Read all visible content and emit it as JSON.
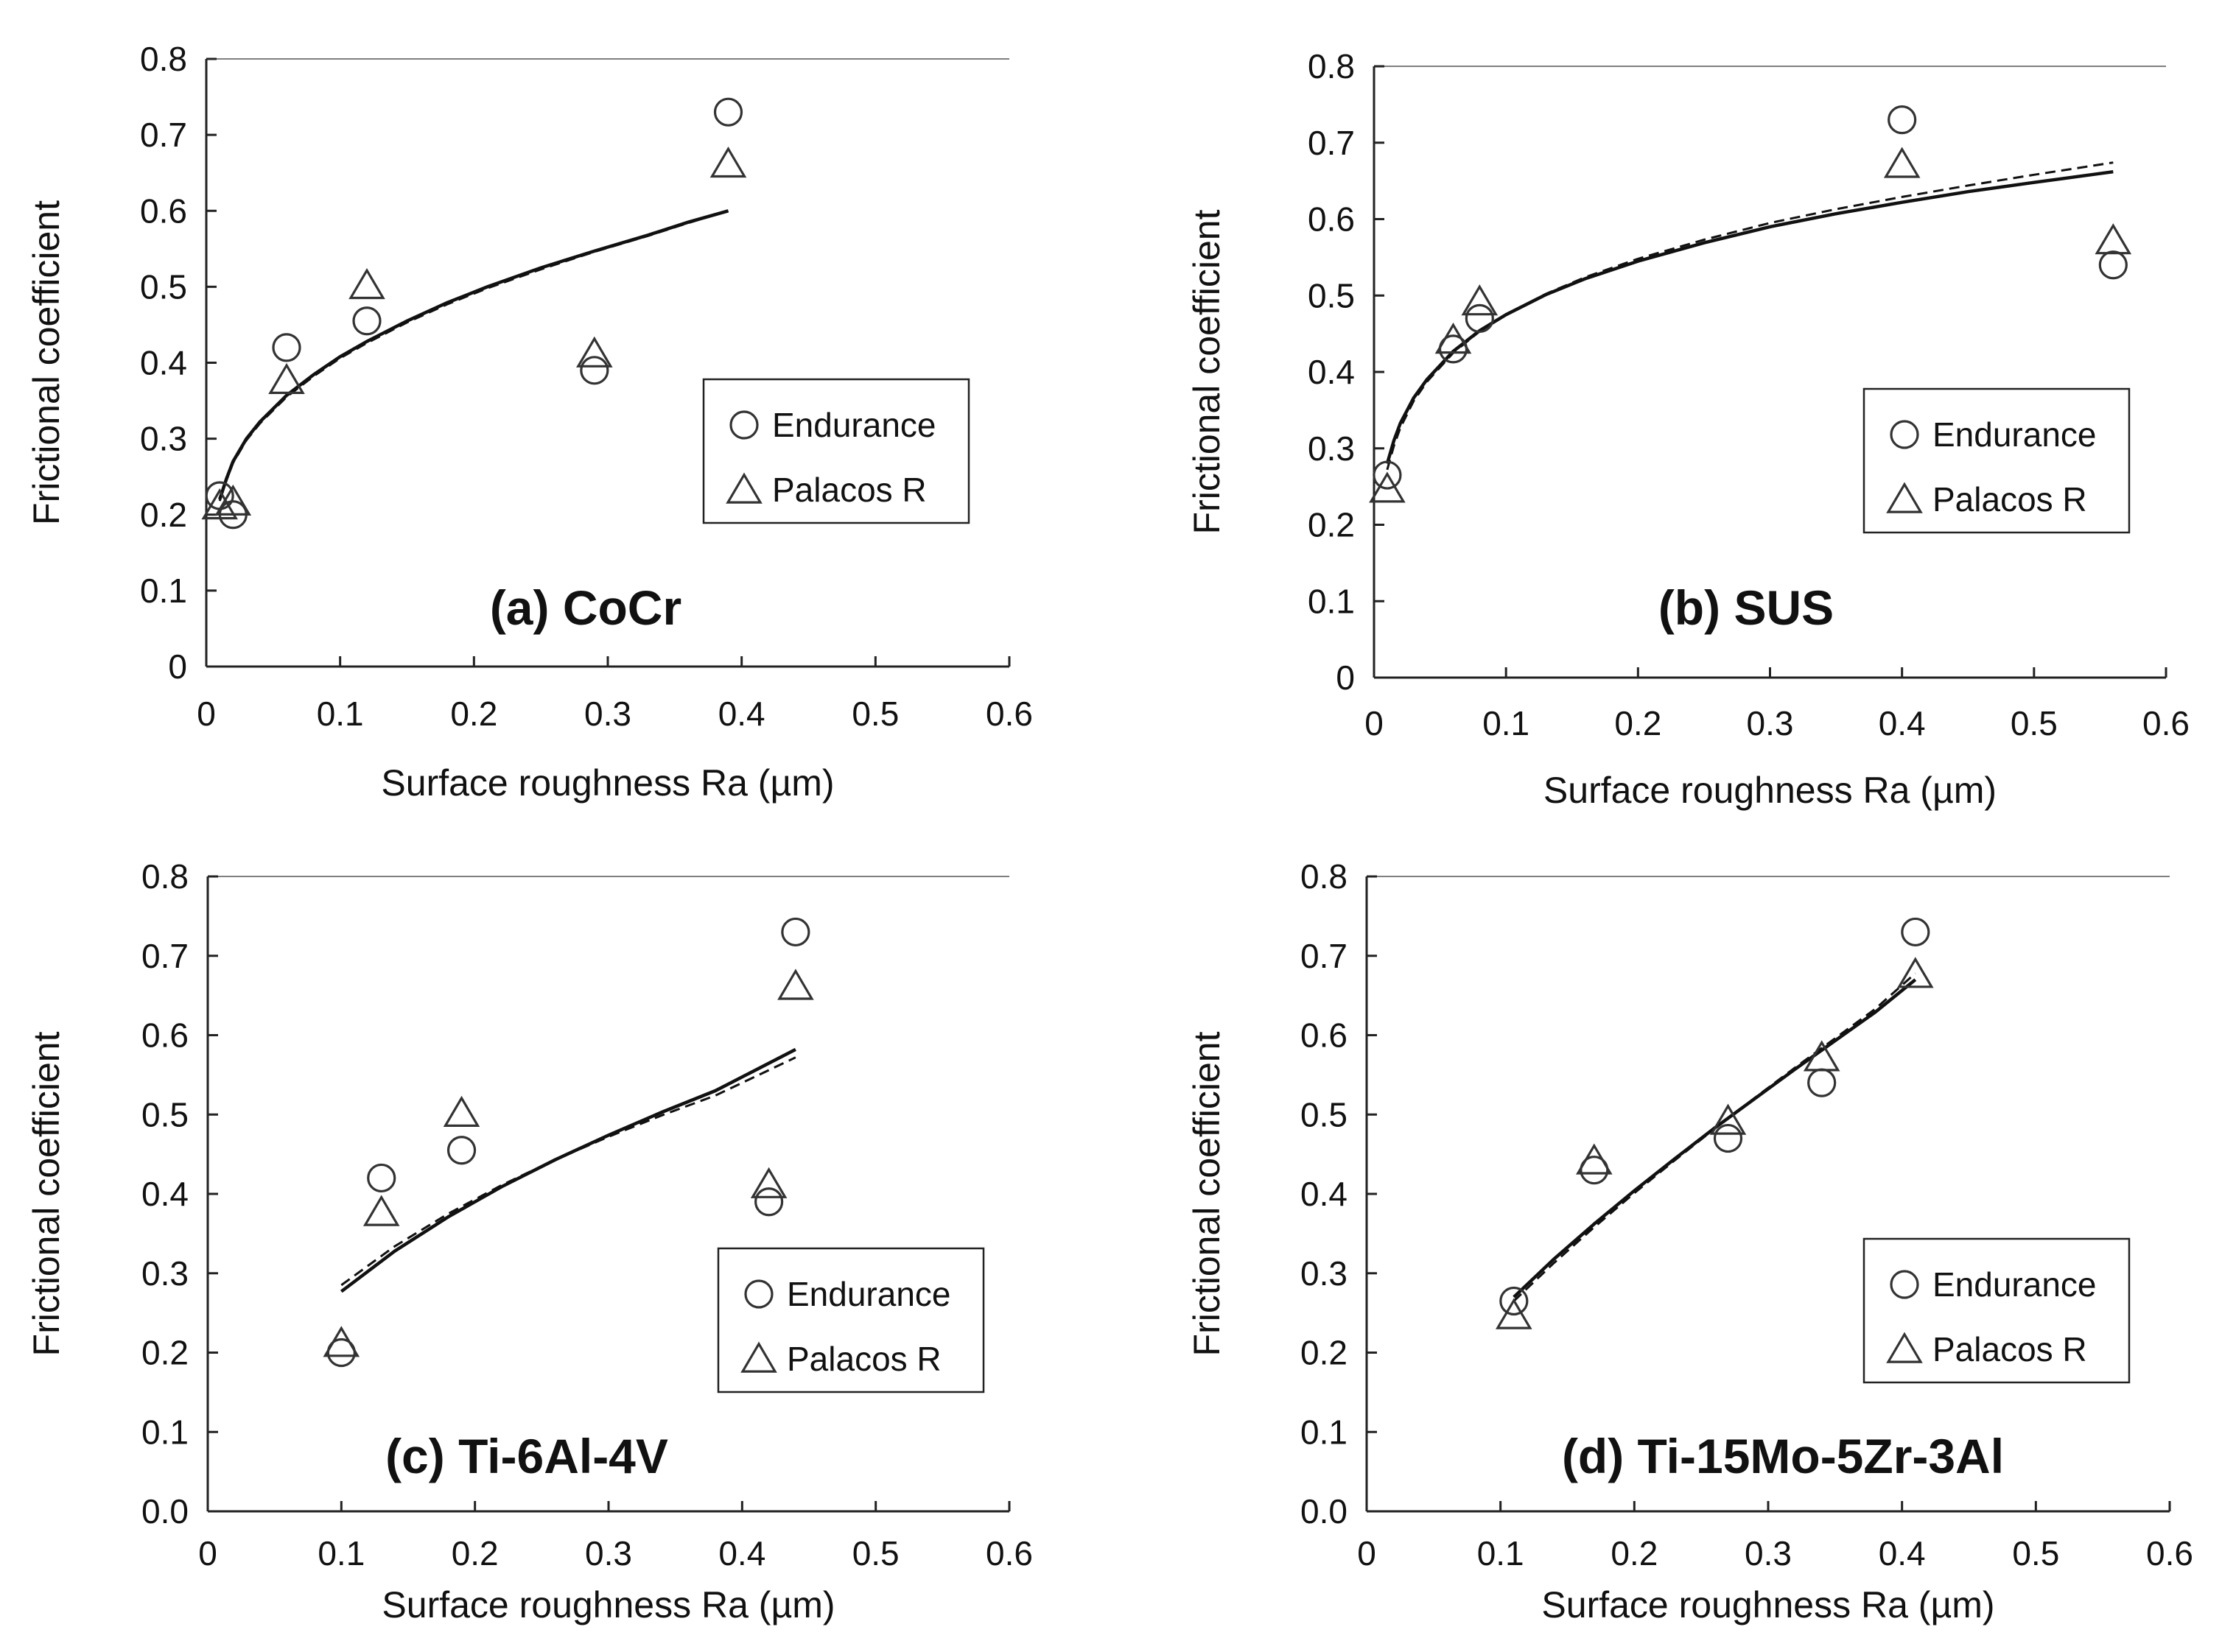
{
  "chart_data": [
    {
      "type": "scatter",
      "title": "(a) CoCr",
      "xlabel": "Surface roughness Ra (µm)",
      "ylabel": "Frictional coefficient",
      "xlim": [
        0,
        0.6
      ],
      "ylim": [
        0,
        0.8
      ],
      "x_ticks": [
        "0",
        "0.1",
        "0.2",
        "0.3",
        "0.4",
        "0.5",
        "0.6"
      ],
      "y_ticks": [
        "0",
        "0.1",
        "0.2",
        "0.3",
        "0.4",
        "0.5",
        "0.6",
        "0.7",
        "0.8"
      ],
      "legend_position": "right-middle",
      "series": [
        {
          "name": "Endurance",
          "marker": "circle",
          "x": [
            0.01,
            0.02,
            0.06,
            0.12,
            0.29,
            0.39
          ],
          "y": [
            0.225,
            0.2,
            0.42,
            0.455,
            0.39,
            0.73
          ]
        },
        {
          "name": "Palacos R",
          "marker": "triangle",
          "x": [
            0.01,
            0.02,
            0.06,
            0.12,
            0.29,
            0.39
          ],
          "y": [
            0.21,
            0.215,
            0.375,
            0.5,
            0.41,
            0.66
          ]
        }
      ],
      "fits": [
        {
          "style": "solid",
          "x": [
            0.01,
            0.015,
            0.02,
            0.03,
            0.04,
            0.06,
            0.08,
            0.1,
            0.12,
            0.15,
            0.18,
            0.21,
            0.25,
            0.29,
            0.33,
            0.36,
            0.39
          ],
          "y": [
            0.22,
            0.247,
            0.27,
            0.3,
            0.322,
            0.357,
            0.384,
            0.408,
            0.428,
            0.455,
            0.479,
            0.5,
            0.525,
            0.547,
            0.568,
            0.585,
            0.6
          ]
        },
        {
          "style": "dashed",
          "x": [
            0.01,
            0.015,
            0.02,
            0.03,
            0.04,
            0.06,
            0.08,
            0.1,
            0.12,
            0.15,
            0.18,
            0.21,
            0.25,
            0.29,
            0.33,
            0.36,
            0.39
          ],
          "y": [
            0.218,
            0.245,
            0.268,
            0.298,
            0.32,
            0.355,
            0.382,
            0.406,
            0.426,
            0.453,
            0.477,
            0.498,
            0.523,
            0.546,
            0.567,
            0.584,
            0.6
          ]
        }
      ]
    },
    {
      "type": "scatter",
      "title": "(b) SUS",
      "xlabel": "Surface roughness Ra (µm)",
      "ylabel": "Frictional coefficient",
      "xlim": [
        0,
        0.6
      ],
      "ylim": [
        0,
        0.8
      ],
      "x_ticks": [
        "0",
        "0.1",
        "0.2",
        "0.3",
        "0.4",
        "0.5",
        "0.6"
      ],
      "y_ticks": [
        "0",
        "0.1",
        "0.2",
        "0.3",
        "0.4",
        "0.5",
        "0.6",
        "0.7",
        "0.8"
      ],
      "legend_position": "right-middle",
      "series": [
        {
          "name": "Endurance",
          "marker": "circle",
          "x": [
            0.01,
            0.06,
            0.08,
            0.4,
            0.56
          ],
          "y": [
            0.265,
            0.43,
            0.47,
            0.73,
            0.54
          ]
        },
        {
          "name": "Palacos R",
          "marker": "triangle",
          "x": [
            0.01,
            0.06,
            0.08,
            0.4,
            0.56
          ],
          "y": [
            0.245,
            0.44,
            0.49,
            0.67,
            0.57
          ]
        }
      ],
      "fits": [
        {
          "style": "solid",
          "x": [
            0.01,
            0.015,
            0.02,
            0.03,
            0.04,
            0.06,
            0.08,
            0.1,
            0.13,
            0.16,
            0.2,
            0.25,
            0.3,
            0.35,
            0.4,
            0.45,
            0.5,
            0.56
          ],
          "y": [
            0.28,
            0.31,
            0.333,
            0.366,
            0.39,
            0.427,
            0.454,
            0.475,
            0.501,
            0.522,
            0.545,
            0.569,
            0.59,
            0.607,
            0.622,
            0.636,
            0.648,
            0.662
          ]
        },
        {
          "style": "dashed",
          "x": [
            0.01,
            0.015,
            0.02,
            0.03,
            0.04,
            0.06,
            0.08,
            0.1,
            0.13,
            0.16,
            0.2,
            0.25,
            0.3,
            0.35,
            0.4,
            0.45,
            0.5,
            0.56
          ],
          "y": [
            0.272,
            0.303,
            0.327,
            0.362,
            0.387,
            0.425,
            0.453,
            0.475,
            0.502,
            0.524,
            0.548,
            0.573,
            0.595,
            0.613,
            0.629,
            0.644,
            0.658,
            0.674
          ]
        }
      ]
    },
    {
      "type": "scatter",
      "title": "(c) Ti-6Al-4V",
      "xlabel": "Surface roughness Ra (µm)",
      "ylabel": "Frictional coefficient",
      "xlim": [
        0,
        0.6
      ],
      "ylim": [
        0,
        0.8
      ],
      "x_ticks": [
        "0",
        "0.1",
        "0.2",
        "0.3",
        "0.4",
        "0.5",
        "0.6"
      ],
      "y_ticks": [
        "0.0",
        "0.1",
        "0.2",
        "0.3",
        "0.4",
        "0.5",
        "0.6",
        "0.7",
        "0.8"
      ],
      "legend_position": "right-bottom",
      "series": [
        {
          "name": "Endurance",
          "marker": "circle",
          "x": [
            0.1,
            0.13,
            0.19,
            0.42,
            0.44
          ],
          "y": [
            0.2,
            0.42,
            0.455,
            0.39,
            0.73
          ]
        },
        {
          "name": "Palacos R",
          "marker": "triangle",
          "x": [
            0.1,
            0.13,
            0.19,
            0.42,
            0.44
          ],
          "y": [
            0.21,
            0.375,
            0.5,
            0.41,
            0.66
          ]
        }
      ],
      "fits": [
        {
          "style": "solid",
          "x": [
            0.1,
            0.14,
            0.18,
            0.22,
            0.26,
            0.3,
            0.34,
            0.38,
            0.44
          ],
          "y": [
            0.277,
            0.328,
            0.371,
            0.409,
            0.443,
            0.474,
            0.503,
            0.53,
            0.582
          ]
        },
        {
          "style": "dashed",
          "x": [
            0.1,
            0.14,
            0.18,
            0.22,
            0.26,
            0.3,
            0.34,
            0.38,
            0.44
          ],
          "y": [
            0.285,
            0.334,
            0.375,
            0.411,
            0.443,
            0.472,
            0.499,
            0.524,
            0.572
          ]
        }
      ]
    },
    {
      "type": "scatter",
      "title": "(d) Ti-15Mo-5Zr-3Al",
      "xlabel": "Surface roughness Ra (µm)",
      "ylabel": "Frictional coefficient",
      "xlim": [
        0,
        0.6
      ],
      "ylim": [
        0,
        0.8
      ],
      "x_ticks": [
        "0",
        "0.1",
        "0.2",
        "0.3",
        "0.4",
        "0.5",
        "0.6"
      ],
      "y_ticks": [
        "0.0",
        "0.1",
        "0.2",
        "0.3",
        "0.4",
        "0.5",
        "0.6",
        "0.7",
        "0.8"
      ],
      "legend_position": "right-bottom",
      "series": [
        {
          "name": "Endurance",
          "marker": "circle",
          "x": [
            0.11,
            0.17,
            0.27,
            0.34,
            0.41
          ],
          "y": [
            0.265,
            0.43,
            0.47,
            0.54,
            0.73
          ]
        },
        {
          "name": "Palacos R",
          "marker": "triangle",
          "x": [
            0.11,
            0.17,
            0.27,
            0.34,
            0.41
          ],
          "y": [
            0.245,
            0.44,
            0.49,
            0.57,
            0.675
          ]
        }
      ],
      "fits": [
        {
          "style": "solid",
          "x": [
            0.11,
            0.14,
            0.17,
            0.2,
            0.23,
            0.26,
            0.29,
            0.32,
            0.35,
            0.38,
            0.41
          ],
          "y": [
            0.27,
            0.318,
            0.362,
            0.404,
            0.444,
            0.483,
            0.52,
            0.557,
            0.593,
            0.629,
            0.67
          ]
        },
        {
          "style": "dashed",
          "x": [
            0.11,
            0.14,
            0.17,
            0.2,
            0.23,
            0.26,
            0.29,
            0.32,
            0.35,
            0.38,
            0.41
          ],
          "y": [
            0.265,
            0.313,
            0.358,
            0.401,
            0.442,
            0.482,
            0.521,
            0.559,
            0.596,
            0.633,
            0.678
          ]
        }
      ]
    }
  ]
}
